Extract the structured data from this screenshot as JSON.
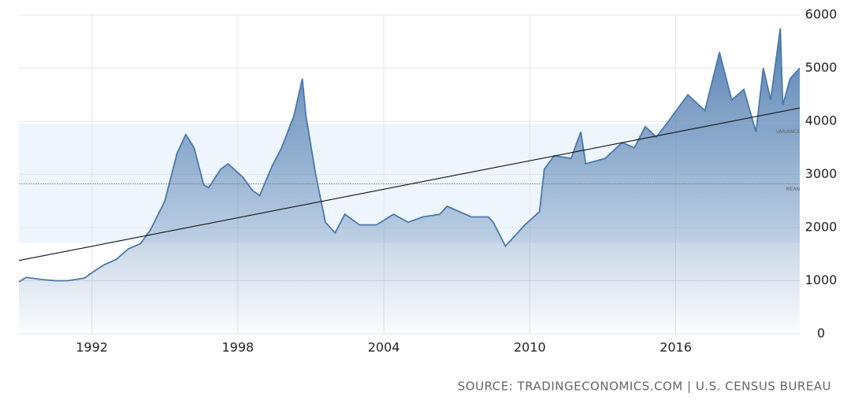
{
  "chart_data": {
    "type": "area",
    "x": [
      1989,
      1989.3,
      1990,
      1990.5,
      1991,
      1991.7,
      1992,
      1992.5,
      1993,
      1993.5,
      1994,
      1994.4,
      1995,
      1995.5,
      1995.86,
      1996.2,
      1996.6,
      1996.8,
      1997.3,
      1997.6,
      1998.2,
      1998.6,
      1998.9,
      1999.4,
      1999.8,
      2000.3,
      2000.65,
      2000.8,
      2001.2,
      2001.6,
      2002,
      2002.4,
      2003,
      2003.7,
      2004.4,
      2005,
      2005.6,
      2006.3,
      2006.6,
      2007.6,
      2008.3,
      2008.5,
      2009,
      2009.4,
      2009.8,
      2010.4,
      2010.6,
      2011,
      2011.7,
      2012.1,
      2012.3,
      2013.1,
      2013.8,
      2014.3,
      2014.75,
      2015.2,
      2015.7,
      2016.5,
      2017.2,
      2017.8,
      2018.3,
      2018.8,
      2019.3,
      2019.6,
      2019.9,
      2020.3,
      2020.4,
      2020.7,
      2021.1
    ],
    "series": [
      {
        "color": "#4a78ad",
        "values": [
          980,
          1060,
          1020,
          1000,
          1000,
          1050,
          1150,
          1300,
          1400,
          1600,
          1700,
          1950,
          2500,
          3400,
          3750,
          3500,
          2800,
          2750,
          3100,
          3200,
          2950,
          2700,
          2600,
          3150,
          3500,
          4100,
          4800,
          4100,
          3000,
          2100,
          1900,
          2250,
          2050,
          2050,
          2250,
          2100,
          2200,
          2250,
          2400,
          2200,
          2200,
          2100,
          1650,
          1850,
          2050,
          2300,
          3100,
          3350,
          3300,
          3800,
          3200,
          3300,
          3600,
          3500,
          3900,
          3700,
          4000,
          4500,
          4200,
          5300,
          4400,
          4600,
          3800,
          5000,
          4400,
          5750,
          4300,
          4800,
          5000
        ]
      }
    ],
    "xlim": [
      1989,
      2021.1
    ],
    "ylim": [
      0,
      6000
    ],
    "xticks": [
      1992,
      1998,
      2004,
      2010,
      2016
    ],
    "yticks": [
      0,
      1000,
      2000,
      3000,
      4000,
      5000,
      6000
    ],
    "grid": true,
    "trend": [
      1380,
      4250
    ],
    "mean": 2820,
    "mean_label": "MEAN",
    "variance_band": [
      1720,
      3950
    ],
    "variance_label": "VARIANCE",
    "source": "SOURCE: TRADINGECONOMICS.COM | U.S. CENSUS BUREAU"
  }
}
